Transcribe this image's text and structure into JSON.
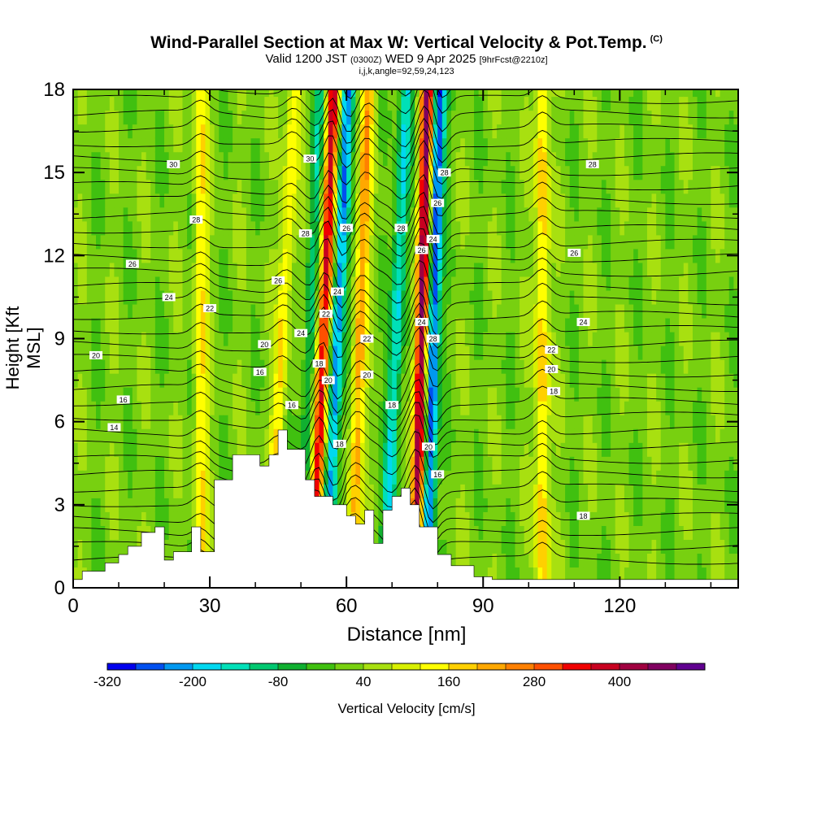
{
  "header": {
    "title": "Wind-Parallel Section at Max W: Vertical Velocity & Pot.Temp.",
    "title_tag": "(C)",
    "valid_prefix": "Valid 1200 JST",
    "valid_utc": "(0300Z)",
    "valid_date": "WED 9 Apr 2025",
    "forecast": "[9hrFcst@2210z]",
    "indices": "i,j,k,angle=92,59,24,123"
  },
  "chart_data": {
    "type": "heatmap",
    "title": "Wind-Parallel Section at Max W: Vertical Velocity & Pot.Temp.",
    "xlabel": "Distance [nm]",
    "ylabel": "Height [Kft MSL]",
    "xlim": [
      0,
      146
    ],
    "ylim": [
      0,
      18
    ],
    "x_ticks": [
      0,
      30,
      60,
      90,
      120
    ],
    "y_ticks": [
      0,
      3,
      6,
      9,
      12,
      15,
      18
    ],
    "colorbar": {
      "label": "Vertical Velocity [cm/s]",
      "tick_labels": [
        "-320",
        "-200",
        "-80",
        "40",
        "160",
        "280",
        "400"
      ],
      "tick_values": [
        -320,
        -200,
        -80,
        40,
        160,
        280,
        400
      ],
      "range": [
        -320,
        520
      ],
      "colors": [
        "#0000ee",
        "#0050f0",
        "#0098f0",
        "#00d8f0",
        "#00e0b8",
        "#00c870",
        "#10b030",
        "#40c010",
        "#78d010",
        "#a8e010",
        "#d8f000",
        "#ffff00",
        "#ffd000",
        "#ffa800",
        "#ff8000",
        "#ff5000",
        "#f00000",
        "#c80020",
        "#a00040",
        "#800060",
        "#600090"
      ]
    },
    "terrain_profile": {
      "x": [
        0,
        2,
        2,
        7,
        7,
        10,
        10,
        12,
        12,
        15,
        15,
        18,
        18,
        20,
        20,
        22,
        22,
        26,
        26,
        28,
        28,
        31,
        31,
        35,
        35,
        41,
        41,
        43,
        43,
        45,
        45,
        47,
        47,
        51,
        51,
        53,
        53,
        57,
        57,
        60,
        60,
        62,
        62,
        64,
        64,
        66,
        66,
        68,
        68,
        70,
        70,
        72,
        72,
        74,
        74,
        76,
        76,
        80,
        80,
        83,
        83,
        88,
        88,
        92,
        92,
        100,
        100,
        146
      ],
      "height": [
        0.3,
        0.3,
        0.6,
        0.6,
        0.9,
        0.9,
        1.2,
        1.2,
        1.5,
        1.5,
        2.0,
        2.0,
        2.2,
        2.2,
        1.0,
        1.0,
        1.3,
        1.3,
        2.2,
        2.2,
        1.3,
        1.3,
        3.9,
        3.9,
        4.8,
        4.8,
        4.4,
        4.4,
        4.8,
        4.8,
        5.7,
        5.7,
        5.0,
        5.0,
        3.9,
        3.9,
        3.3,
        3.3,
        3.0,
        3.0,
        2.6,
        2.6,
        2.3,
        2.3,
        2.8,
        2.8,
        1.6,
        1.6,
        2.8,
        2.8,
        3.3,
        3.3,
        3.6,
        3.6,
        3.0,
        3.0,
        2.2,
        2.2,
        1.2,
        1.2,
        0.8,
        0.8,
        0.4,
        0.4,
        0.3,
        0.3,
        0.3,
        0.3
      ]
    },
    "updraft_bands": [
      {
        "x_center": 28,
        "tilt": 0.0,
        "w": 140
      },
      {
        "x_center": 46,
        "tilt": 0.3,
        "w": 150
      },
      {
        "x_center": 55,
        "tilt": 0.25,
        "w": 360
      },
      {
        "x_center": 63,
        "tilt": 0.2,
        "w": 200
      },
      {
        "x_center": 76.5,
        "tilt": 0.15,
        "w": 440
      },
      {
        "x_center": 103,
        "tilt": 0.0,
        "w": 180
      }
    ],
    "downdraft_bands": [
      {
        "x_center": 52,
        "tilt": 0.25,
        "w": -120
      },
      {
        "x_center": 58,
        "tilt": 0.25,
        "w": -260
      },
      {
        "x_center": 71,
        "tilt": 0.25,
        "w": -200
      },
      {
        "x_center": 79,
        "tilt": 0.15,
        "w": -320
      }
    ],
    "theta_labels": [
      {
        "text": "30",
        "x": 22,
        "y": 15.3
      },
      {
        "text": "28",
        "x": 27,
        "y": 13.3
      },
      {
        "text": "26",
        "x": 13,
        "y": 11.7
      },
      {
        "text": "24",
        "x": 21,
        "y": 10.5
      },
      {
        "text": "22",
        "x": 30,
        "y": 10.1
      },
      {
        "text": "20",
        "x": 5,
        "y": 8.4
      },
      {
        "text": "16",
        "x": 11,
        "y": 6.8
      },
      {
        "text": "14",
        "x": 9,
        "y": 5.8
      },
      {
        "text": "30",
        "x": 52,
        "y": 15.5
      },
      {
        "text": "28",
        "x": 51,
        "y": 12.8
      },
      {
        "text": "26",
        "x": 45,
        "y": 11.1
      },
      {
        "text": "20",
        "x": 42,
        "y": 8.8
      },
      {
        "text": "16",
        "x": 41,
        "y": 7.8
      },
      {
        "text": "24",
        "x": 50,
        "y": 9.2
      },
      {
        "text": "16",
        "x": 48,
        "y": 6.6
      },
      {
        "text": "22",
        "x": 55.5,
        "y": 9.9
      },
      {
        "text": "18",
        "x": 54,
        "y": 8.1
      },
      {
        "text": "20",
        "x": 56,
        "y": 7.5
      },
      {
        "text": "24",
        "x": 58,
        "y": 10.7
      },
      {
        "text": "26",
        "x": 60,
        "y": 13.0
      },
      {
        "text": "18",
        "x": 58.5,
        "y": 5.2
      },
      {
        "text": "22",
        "x": 64.5,
        "y": 9.0
      },
      {
        "text": "20",
        "x": 64.5,
        "y": 7.7
      },
      {
        "text": "28",
        "x": 72,
        "y": 13.0
      },
      {
        "text": "18",
        "x": 70,
        "y": 6.6
      },
      {
        "text": "26",
        "x": 76.5,
        "y": 12.2
      },
      {
        "text": "24",
        "x": 76.5,
        "y": 9.6
      },
      {
        "text": "20",
        "x": 78,
        "y": 5.1
      },
      {
        "text": "16",
        "x": 80,
        "y": 4.1
      },
      {
        "text": "28",
        "x": 81.5,
        "y": 15.0
      },
      {
        "text": "26",
        "x": 80,
        "y": 13.9
      },
      {
        "text": "24",
        "x": 79,
        "y": 12.6
      },
      {
        "text": "28",
        "x": 79,
        "y": 9.0
      },
      {
        "text": "28",
        "x": 114,
        "y": 15.3
      },
      {
        "text": "26",
        "x": 110,
        "y": 12.1
      },
      {
        "text": "24",
        "x": 112,
        "y": 9.6
      },
      {
        "text": "22",
        "x": 105,
        "y": 8.6
      },
      {
        "text": "20",
        "x": 105,
        "y": 7.9
      },
      {
        "text": "18",
        "x": 105.5,
        "y": 7.1
      },
      {
        "text": "18",
        "x": 112,
        "y": 2.6
      }
    ]
  },
  "axis_labels": {
    "x": "Distance [nm]",
    "y": "Height [Kft MSL]",
    "colorbar": "Vertical Velocity [cm/s]"
  }
}
